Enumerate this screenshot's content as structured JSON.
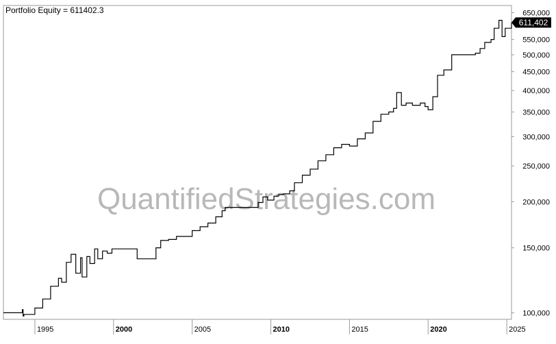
{
  "title": "Portfolio Equity = 611402.3",
  "watermark": "QuantifiedStrategies.com",
  "colors": {
    "line": "#000000",
    "background": "#ffffff",
    "frame": "#9a9a9a",
    "label_bg": "#000000",
    "label_text": "#ffffff",
    "watermark": "#b8b8b8"
  },
  "chart_data": {
    "type": "line",
    "title": "Portfolio Equity = 611402.3",
    "y_scale": "log",
    "ylim": [
      96000,
      680000
    ],
    "xlim": [
      1993.0,
      2025.3
    ],
    "grid": false,
    "y_ticks": [
      {
        "value": 650000,
        "label": "650,000"
      },
      {
        "value": 550000,
        "label": "550,000"
      },
      {
        "value": 500000,
        "label": "500,000"
      },
      {
        "value": 450000,
        "label": "450,000"
      },
      {
        "value": 400000,
        "label": "400,000"
      },
      {
        "value": 350000,
        "label": "350,000"
      },
      {
        "value": 300000,
        "label": "300,000"
      },
      {
        "value": 250000,
        "label": "250,000"
      },
      {
        "value": 200000,
        "label": "200,000"
      },
      {
        "value": 150000,
        "label": "150,000"
      },
      {
        "value": 100000,
        "label": "100,000"
      }
    ],
    "x_ticks": [
      {
        "value": 1995,
        "label": "1995",
        "bold": false
      },
      {
        "value": 2000,
        "label": "2000",
        "bold": true
      },
      {
        "value": 2005,
        "label": "2005",
        "bold": false
      },
      {
        "value": 2010,
        "label": "2010",
        "bold": true
      },
      {
        "value": 2015,
        "label": "2015",
        "bold": false
      },
      {
        "value": 2020,
        "label": "2020",
        "bold": true
      },
      {
        "value": 2025,
        "label": "2025",
        "bold": false
      }
    ],
    "last_value_label": "611,402",
    "last_value": 611402,
    "series": [
      {
        "x": [
          1993.0,
          1994.1,
          1994.2,
          1994.25,
          1994.3,
          1995.0,
          1995.5,
          1996.0,
          1996.5,
          1996.7,
          1997.0,
          1997.3,
          1997.6,
          1997.9,
          1998.0,
          1998.3,
          1998.5,
          1998.8,
          1999.0,
          1999.3,
          1999.6,
          1999.9,
          2000.0,
          2001.0,
          2001.5,
          2001.6,
          2002.5,
          2002.7,
          2003.0,
          2003.5,
          2004.0,
          2005.0,
          2005.5,
          2006.0,
          2006.5,
          2006.9,
          2007.1,
          2008.0,
          2009.0,
          2009.2,
          2009.5,
          2009.8,
          2010.2,
          2010.5,
          2010.8,
          2011.2,
          2011.5,
          2012.0,
          2012.5,
          2013.0,
          2013.5,
          2014.0,
          2014.5,
          2015.0,
          2015.5,
          2016.0,
          2016.5,
          2017.0,
          2017.5,
          2017.8,
          2018.0,
          2018.3,
          2018.6,
          2019.0,
          2019.5,
          2019.8,
          2020.0,
          2020.3,
          2020.6,
          2021.0,
          2021.5,
          2021.7,
          2022.5,
          2023.0,
          2023.3,
          2023.6,
          2024.0,
          2024.2,
          2024.5,
          2024.7,
          2024.9,
          2025.3
        ],
        "y": [
          100000,
          100000,
          102000,
          98000,
          99000,
          103000,
          109000,
          118000,
          124000,
          121000,
          137000,
          144000,
          128000,
          141000,
          125000,
          142000,
          136000,
          149000,
          140000,
          147000,
          145000,
          149000,
          149000,
          149000,
          140000,
          140000,
          140000,
          150000,
          157000,
          158000,
          161000,
          167000,
          171000,
          175000,
          182000,
          189000,
          193000,
          193000,
          193000,
          199000,
          206000,
          202000,
          207000,
          209000,
          210000,
          214000,
          225000,
          236000,
          245000,
          258000,
          268000,
          280000,
          286000,
          283000,
          296000,
          307000,
          330000,
          345000,
          350000,
          358000,
          395000,
          365000,
          370000,
          365000,
          370000,
          362000,
          355000,
          385000,
          440000,
          455000,
          500000,
          500000,
          500000,
          505000,
          520000,
          540000,
          550000,
          590000,
          620000,
          560000,
          590000,
          611402
        ]
      }
    ]
  }
}
